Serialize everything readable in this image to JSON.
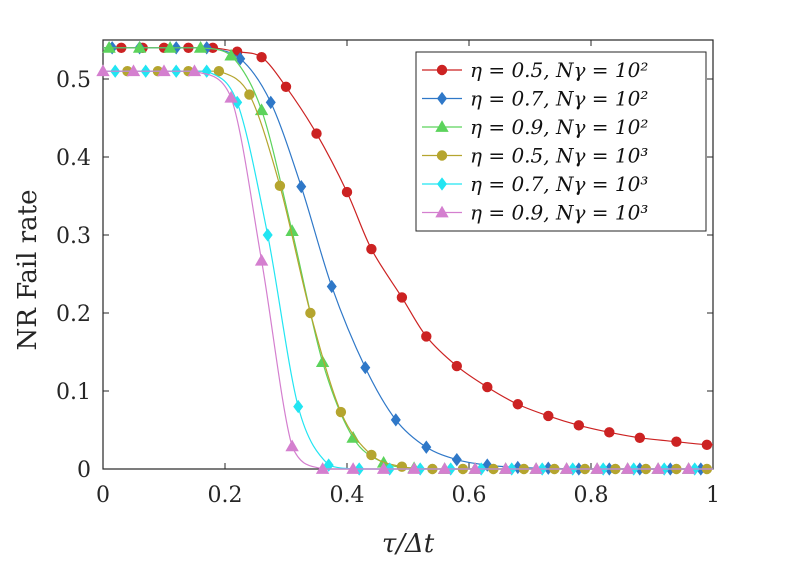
{
  "chart_data": {
    "type": "line",
    "xlabel": "τ/Δt",
    "ylabel": "NR Fail rate",
    "xlim": [
      0,
      1
    ],
    "ylim": [
      0,
      0.55
    ],
    "xticks": [
      "0",
      "0.2",
      "0.4",
      "0.6",
      "0.8",
      "1"
    ],
    "yticks": [
      "0",
      "0.1",
      "0.2",
      "0.3",
      "0.4",
      "0.5"
    ],
    "grid": false,
    "legend_position": "top-right",
    "series": [
      {
        "name": "η = 0.5, Nγ = 10²",
        "color": "#cc2222",
        "marker": "circle",
        "x": [
          0.03,
          0.065,
          0.1,
          0.14,
          0.18,
          0.22,
          0.26,
          0.3,
          0.35,
          0.4,
          0.44,
          0.49,
          0.53,
          0.58,
          0.63,
          0.68,
          0.73,
          0.78,
          0.83,
          0.88,
          0.94,
          0.99
        ],
        "y": [
          0.54,
          0.54,
          0.54,
          0.54,
          0.54,
          0.535,
          0.528,
          0.49,
          0.43,
          0.355,
          0.282,
          0.22,
          0.17,
          0.132,
          0.105,
          0.083,
          0.068,
          0.056,
          0.047,
          0.04,
          0.035,
          0.031
        ]
      },
      {
        "name": "η = 0.7, Nγ = 10²",
        "color": "#2f78c8",
        "marker": "diamond",
        "x": [
          0.015,
          0.06,
          0.12,
          0.17,
          0.225,
          0.275,
          0.325,
          0.375,
          0.43,
          0.48,
          0.53,
          0.58,
          0.63,
          0.68,
          0.73,
          0.78,
          0.83,
          0.88,
          0.93,
          0.98
        ],
        "y": [
          0.54,
          0.54,
          0.54,
          0.54,
          0.526,
          0.47,
          0.362,
          0.234,
          0.13,
          0.063,
          0.028,
          0.012,
          0.005,
          0.002,
          0.001,
          0.0,
          0.0,
          0.0,
          0.0,
          0.0
        ],
        "y_curve": [
          0.54,
          0.54,
          0.54,
          0.54,
          0.526,
          0.47,
          0.362,
          0.234,
          0.13,
          0.063,
          0.028,
          0.012,
          0.005,
          0.002,
          0.001,
          0.0,
          0.0,
          0.0,
          0.0,
          0.0
        ]
      },
      {
        "name": "η = 0.9, Nγ = 10²",
        "color": "#5cd35c",
        "marker": "triangle",
        "x": [
          0.01,
          0.06,
          0.11,
          0.16,
          0.21,
          0.26,
          0.31,
          0.36,
          0.41,
          0.46,
          0.51,
          0.56,
          0.61,
          0.66,
          0.71,
          0.76,
          0.81,
          0.86,
          0.91,
          0.96
        ],
        "y": [
          0.54,
          0.54,
          0.54,
          0.54,
          0.53,
          0.46,
          0.305,
          0.137,
          0.04,
          0.008,
          0.001,
          0.0,
          0.0,
          0.0,
          0.0,
          0.0,
          0.0,
          0.0,
          0.0,
          0.0
        ]
      },
      {
        "name": "η = 0.5, Nγ = 10³",
        "color": "#b5a52f",
        "marker": "circle",
        "x": [
          0.04,
          0.09,
          0.14,
          0.19,
          0.24,
          0.29,
          0.34,
          0.39,
          0.44,
          0.49,
          0.54,
          0.59,
          0.64,
          0.69,
          0.74,
          0.79,
          0.84,
          0.89,
          0.94,
          0.99
        ],
        "y": [
          0.51,
          0.51,
          0.51,
          0.51,
          0.48,
          0.363,
          0.2,
          0.073,
          0.018,
          0.003,
          0.0,
          0.0,
          0.0,
          0.0,
          0.0,
          0.0,
          0.0,
          0.0,
          0.0,
          0.0
        ]
      },
      {
        "name": "η = 0.7, Nγ = 10³",
        "color": "#22e5f2",
        "marker": "diamond",
        "x": [
          0.02,
          0.07,
          0.12,
          0.17,
          0.22,
          0.27,
          0.32,
          0.37,
          0.42,
          0.47,
          0.52,
          0.57,
          0.62,
          0.67,
          0.72,
          0.77,
          0.82,
          0.87,
          0.92,
          0.97
        ],
        "y": [
          0.51,
          0.51,
          0.51,
          0.51,
          0.47,
          0.3,
          0.08,
          0.005,
          0.0,
          0.0,
          0.0,
          0.0,
          0.0,
          0.0,
          0.0,
          0.0,
          0.0,
          0.0,
          0.0,
          0.0
        ]
      },
      {
        "name": "η = 0.9, Nγ = 10³",
        "color": "#d47fcf",
        "marker": "triangle",
        "x": [
          0.0,
          0.05,
          0.1,
          0.15,
          0.21,
          0.26,
          0.31,
          0.36,
          0.41,
          0.46,
          0.51,
          0.56,
          0.61,
          0.66,
          0.71,
          0.76,
          0.81,
          0.86,
          0.91,
          0.96
        ],
        "y": [
          0.51,
          0.51,
          0.51,
          0.51,
          0.476,
          0.267,
          0.029,
          0.0,
          0.0,
          0.0,
          0.0,
          0.0,
          0.0,
          0.0,
          0.0,
          0.0,
          0.0,
          0.0,
          0.0,
          0.0
        ]
      }
    ]
  }
}
